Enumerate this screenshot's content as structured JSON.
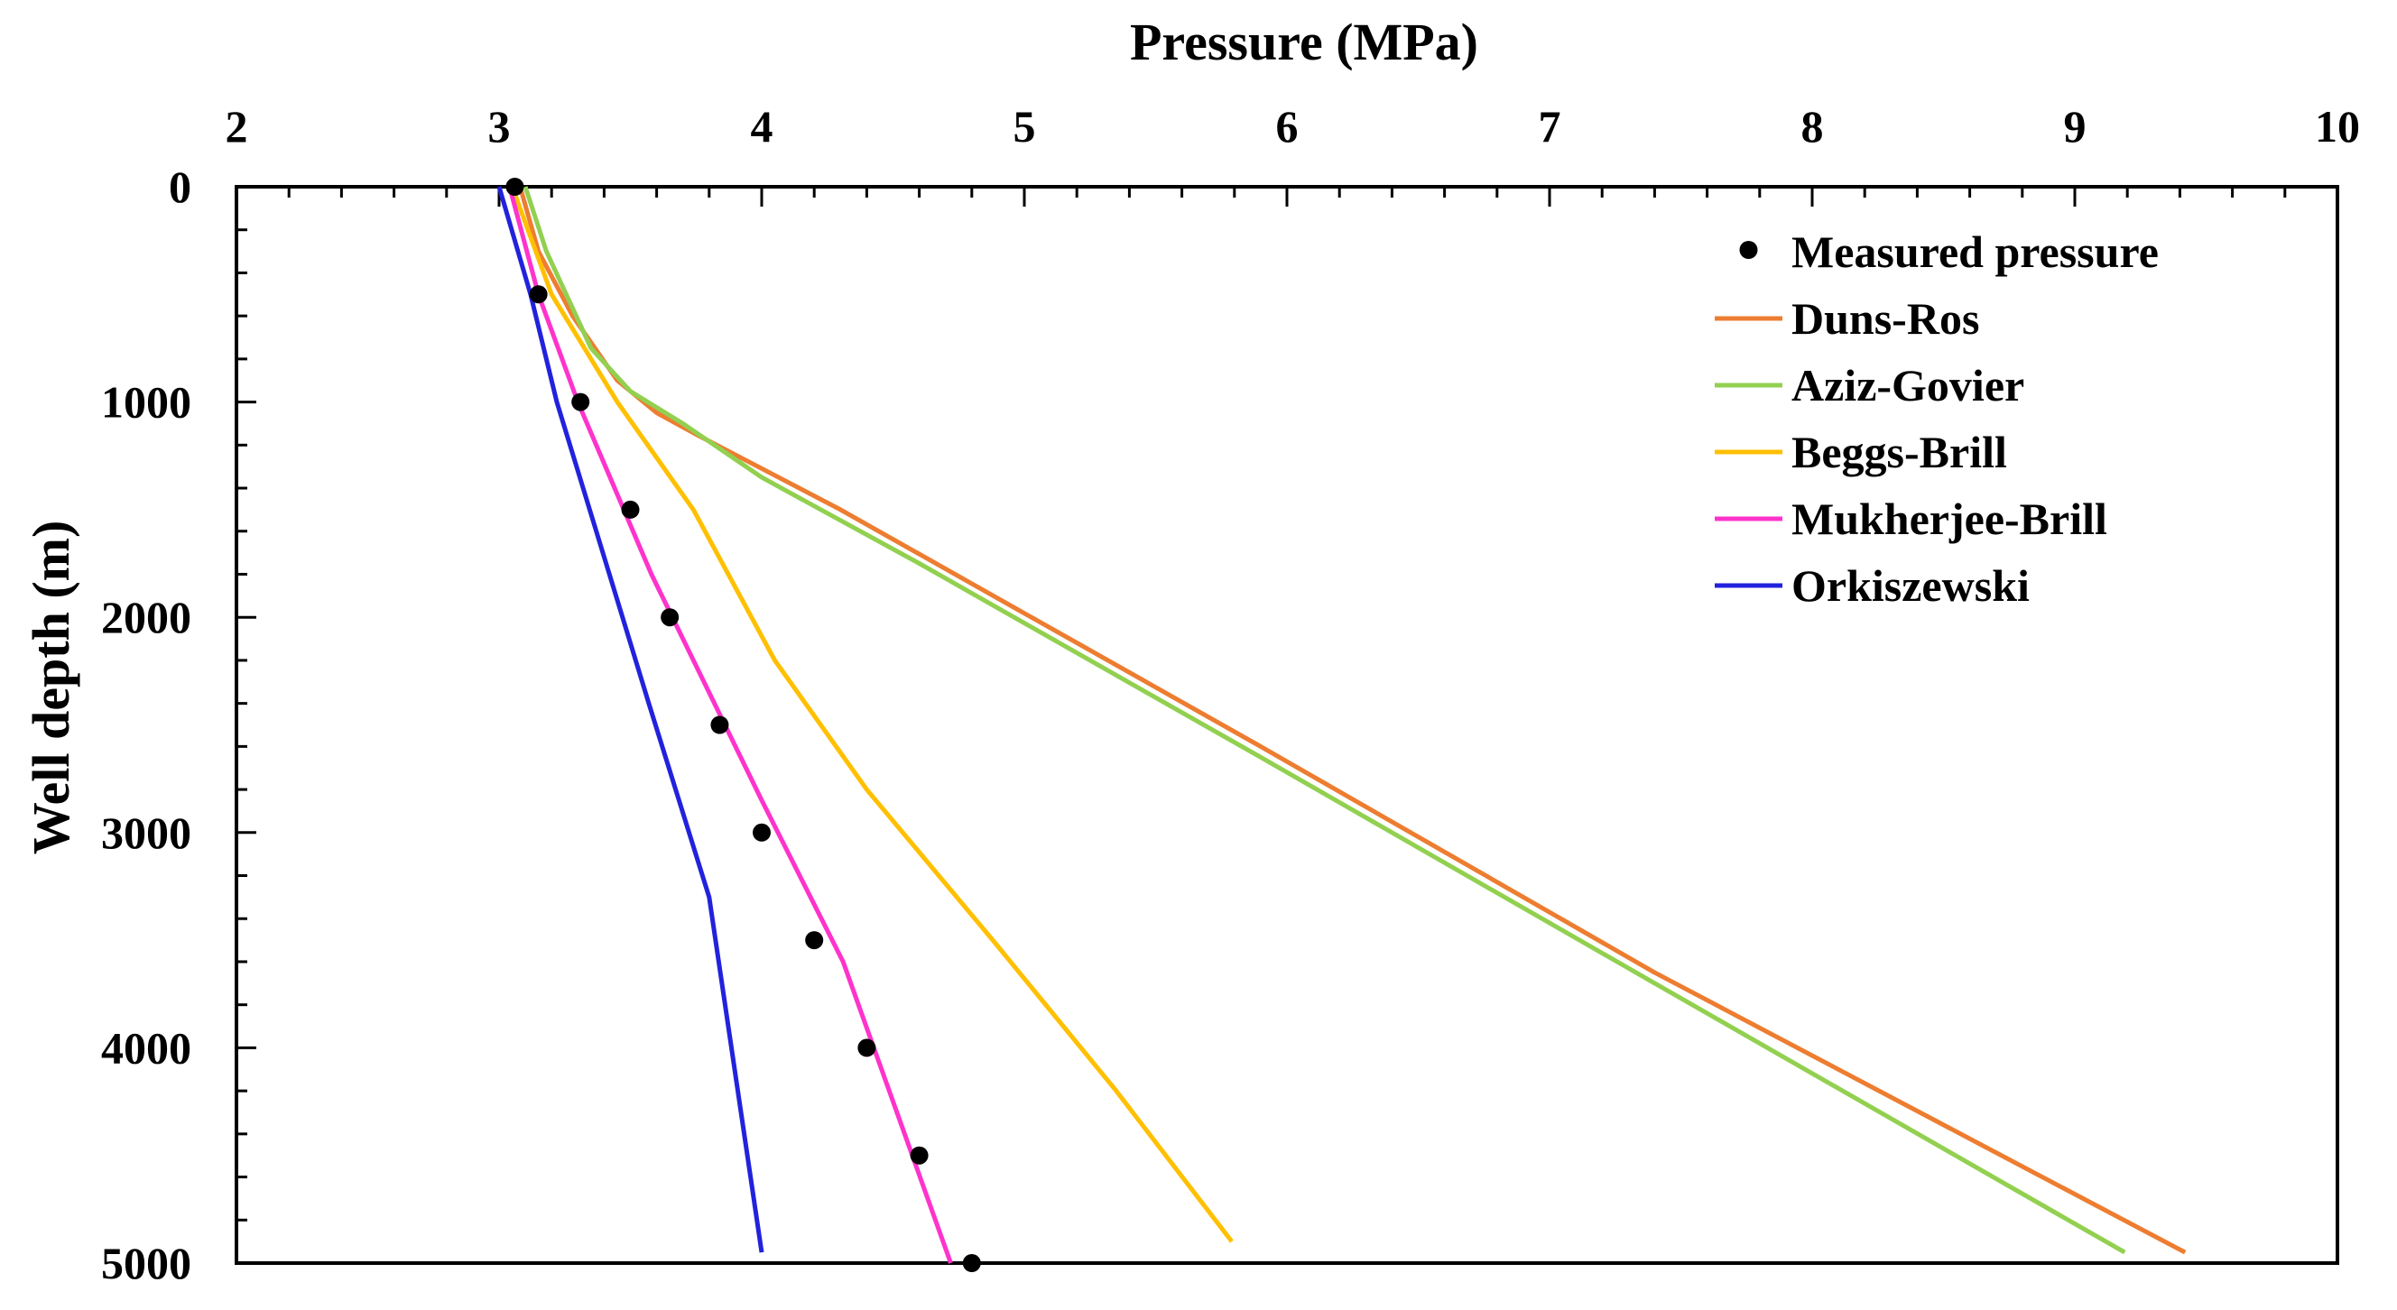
{
  "chart_data": {
    "type": "line",
    "title": "",
    "xlabel": "Pressure (MPa)",
    "ylabel": "Well depth (m)",
    "xlim": [
      2,
      10
    ],
    "ylim": [
      0,
      5000
    ],
    "y_inverted": true,
    "x_axis_position": "top",
    "xticks": [
      2,
      3,
      4,
      5,
      6,
      7,
      8,
      9,
      10
    ],
    "yticks": [
      0,
      1000,
      2000,
      3000,
      4000,
      5000
    ],
    "grid": false,
    "legend_position": "top-right",
    "series": [
      {
        "name": "Measured pressure",
        "kind": "scatter",
        "color": "#000000",
        "points": [
          [
            3.06,
            0
          ],
          [
            3.15,
            500
          ],
          [
            3.31,
            1000
          ],
          [
            3.5,
            1500
          ],
          [
            3.65,
            2000
          ],
          [
            3.84,
            2500
          ],
          [
            4.0,
            3000
          ],
          [
            4.2,
            3500
          ],
          [
            4.4,
            4000
          ],
          [
            4.6,
            4500
          ],
          [
            4.8,
            5000
          ]
        ]
      },
      {
        "name": "Duns-Ros",
        "kind": "line",
        "color": "#ED7D31",
        "points": [
          [
            3.08,
            0
          ],
          [
            3.15,
            300
          ],
          [
            3.28,
            600
          ],
          [
            3.45,
            900
          ],
          [
            3.6,
            1050
          ],
          [
            3.75,
            1150
          ],
          [
            4.3,
            1500
          ],
          [
            5.9,
            2600
          ],
          [
            7.4,
            3650
          ],
          [
            9.42,
            4950
          ]
        ]
      },
      {
        "name": "Aziz-Govier",
        "kind": "line",
        "color": "#92D050",
        "points": [
          [
            3.1,
            0
          ],
          [
            3.18,
            300
          ],
          [
            3.35,
            750
          ],
          [
            3.5,
            950
          ],
          [
            3.7,
            1100
          ],
          [
            4.0,
            1350
          ],
          [
            4.6,
            1750
          ],
          [
            5.9,
            2650
          ],
          [
            7.4,
            3700
          ],
          [
            9.19,
            4950
          ]
        ]
      },
      {
        "name": "Beggs-Brill",
        "kind": "line",
        "color": "#FFC000",
        "points": [
          [
            3.05,
            0
          ],
          [
            3.2,
            500
          ],
          [
            3.45,
            1000
          ],
          [
            3.74,
            1500
          ],
          [
            4.05,
            2200
          ],
          [
            4.4,
            2800
          ],
          [
            4.88,
            3500
          ],
          [
            5.35,
            4200
          ],
          [
            5.79,
            4900
          ]
        ]
      },
      {
        "name": "Mukherjee-Brill",
        "kind": "line",
        "color": "#FF33CC",
        "points": [
          [
            3.04,
            0
          ],
          [
            3.15,
            500
          ],
          [
            3.3,
            1000
          ],
          [
            3.58,
            1800
          ],
          [
            3.78,
            2300
          ],
          [
            4.0,
            2850
          ],
          [
            4.31,
            3600
          ],
          [
            4.72,
            5000
          ]
        ]
      },
      {
        "name": "Orkiszewski",
        "kind": "line",
        "color": "#2222DD",
        "points": [
          [
            3.0,
            0
          ],
          [
            3.12,
            500
          ],
          [
            3.22,
            1000
          ],
          [
            3.37,
            1600
          ],
          [
            3.57,
            2400
          ],
          [
            3.8,
            3300
          ],
          [
            4.0,
            4950
          ]
        ]
      }
    ]
  }
}
